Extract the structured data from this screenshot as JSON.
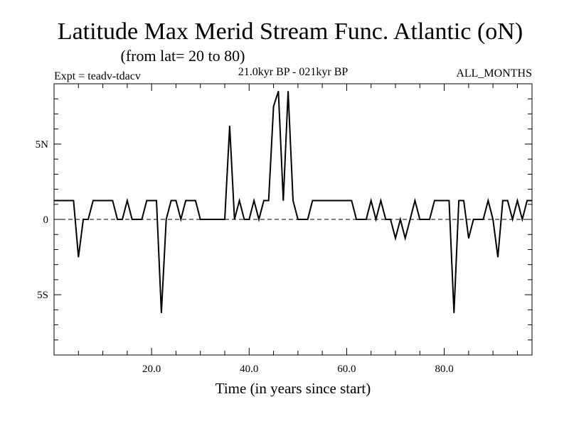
{
  "chart_data": {
    "type": "line",
    "title": "Latitude Max Merid Stream Func. Atlantic (oN)",
    "subtitle": "(from lat= 20 to 80)",
    "experiment": "Expt = teadv-tdacv",
    "period": "21.0kyr BP - 021kyr BP",
    "season": "ALL_MONTHS",
    "xlabel": "Time (in years since start)",
    "ylabel": "",
    "xlim": [
      0,
      98
    ],
    "ylim": [
      -9,
      9
    ],
    "x_ticks": [
      {
        "value": 20,
        "label": "20.0"
      },
      {
        "value": 40,
        "label": "40.0"
      },
      {
        "value": 60,
        "label": "60.0"
      },
      {
        "value": 80,
        "label": "80.0"
      }
    ],
    "y_ticks": [
      {
        "value": 5,
        "label": "5N"
      },
      {
        "value": 0,
        "label": "0"
      },
      {
        "value": -5,
        "label": "5S"
      }
    ],
    "zero_line": {
      "value": 0,
      "style": "dashed"
    },
    "series": [
      {
        "name": "Latitude Max Merid Stream Func.",
        "x": [
          0,
          1,
          2,
          3,
          4,
          5,
          6,
          7,
          8,
          9,
          10,
          11,
          12,
          13,
          14,
          15,
          16,
          17,
          18,
          19,
          20,
          21,
          22,
          23,
          24,
          25,
          26,
          27,
          28,
          29,
          30,
          31,
          32,
          33,
          34,
          35,
          36,
          37,
          38,
          39,
          40,
          41,
          42,
          43,
          44,
          45,
          46,
          47,
          48,
          49,
          50,
          51,
          52,
          53,
          54,
          55,
          56,
          57,
          58,
          59,
          60,
          61,
          62,
          63,
          64,
          65,
          66,
          67,
          68,
          69,
          70,
          71,
          72,
          73,
          74,
          75,
          76,
          77,
          78,
          79,
          80,
          81,
          82,
          83,
          84,
          85,
          86,
          87,
          88,
          89,
          90,
          91,
          92,
          93,
          94,
          95,
          96,
          97,
          98
        ],
        "values": [
          1.25,
          1.25,
          1.25,
          1.25,
          1.25,
          -2.5,
          0,
          0,
          1.25,
          1.25,
          1.25,
          1.25,
          1.25,
          0,
          0,
          1.25,
          0,
          0,
          0,
          1.25,
          1.25,
          1.25,
          -6.2,
          0,
          1.25,
          1.25,
          0,
          1.25,
          1.25,
          1.25,
          0,
          0,
          0,
          0,
          0,
          0,
          6.2,
          0,
          1.25,
          0,
          0,
          1.25,
          0,
          1.25,
          1.25,
          7.5,
          8.5,
          1.25,
          8.5,
          1.25,
          0,
          0,
          0,
          1.25,
          1.25,
          1.25,
          1.25,
          1.25,
          1.25,
          1.25,
          1.25,
          1.25,
          0,
          0,
          0,
          1.25,
          0,
          1.25,
          0,
          0,
          -1.25,
          0,
          -1.25,
          0,
          1.25,
          0,
          0,
          0,
          1.25,
          1.25,
          1.25,
          1.25,
          -6.2,
          1.25,
          1.25,
          -1.25,
          0,
          0,
          0,
          1.25,
          0,
          -2.5,
          1.25,
          1.25,
          0,
          1.25,
          0,
          1.25,
          1.25
        ]
      }
    ]
  }
}
